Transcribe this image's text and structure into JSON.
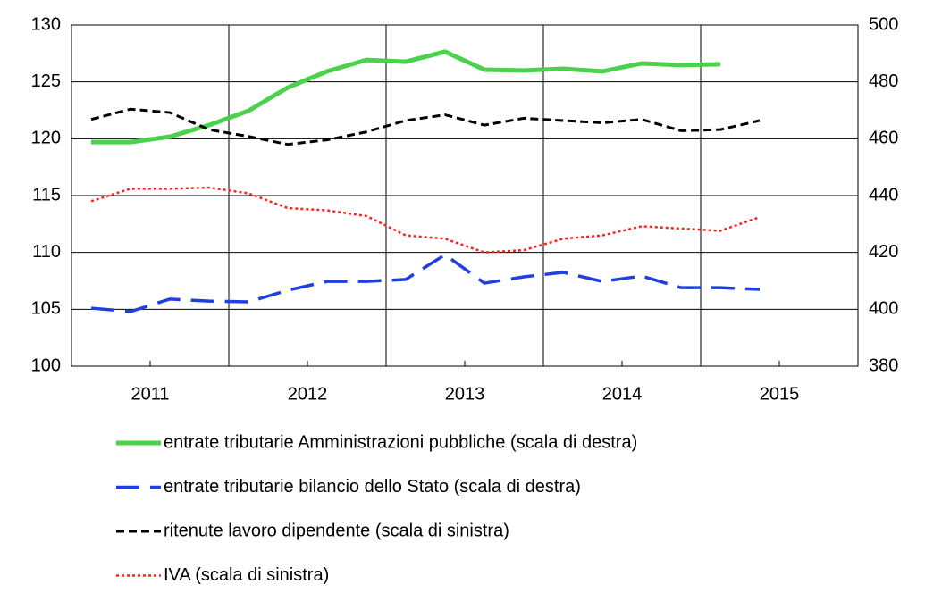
{
  "chart_data": {
    "type": "line",
    "x": [
      2010.625,
      2010.875,
      2011.125,
      2011.375,
      2011.625,
      2011.875,
      2012.125,
      2012.375,
      2012.625,
      2012.875,
      2013.125,
      2013.375,
      2013.625,
      2013.875,
      2014.125,
      2014.375,
      2014.625,
      2014.875
    ],
    "xlim": [
      2010.5,
      2015.5
    ],
    "xticks": [
      2011,
      2012,
      2013,
      2014,
      2015
    ],
    "ylim": [
      100,
      130
    ],
    "yticks": [
      100,
      105,
      110,
      115,
      120,
      125,
      130
    ],
    "y2lim": [
      380,
      500
    ],
    "y2ticks": [
      380,
      400,
      420,
      440,
      460,
      480,
      500
    ],
    "grid": true,
    "series": [
      {
        "name": "entrate tributarie Amministrazioni pubbliche (scala di destra)",
        "color": "#4cd14c",
        "axis": "y2",
        "line_style": "solid",
        "values": [
          458.8,
          458.8,
          460.7,
          464.8,
          469.8,
          478.0,
          483.7,
          487.7,
          487.1,
          490.6,
          484.3,
          484.0,
          484.6,
          483.7,
          486.5,
          485.9,
          486.2,
          null
        ]
      },
      {
        "name": "entrate tributarie bilancio dello Stato (scala di destra)",
        "color": "#1f3fe0",
        "axis": "y2",
        "line_style": "longdash",
        "values": [
          400.4,
          399.2,
          403.6,
          402.9,
          402.6,
          406.7,
          409.8,
          409.8,
          410.5,
          419.2,
          409.2,
          411.4,
          413.0,
          409.8,
          411.7,
          407.6,
          407.6,
          407.0
        ]
      },
      {
        "name": "ritenute lavoro dipendente (scala di sinistra)",
        "color": "#000000",
        "line_style": "dashed",
        "values": [
          121.7,
          122.6,
          122.3,
          120.8,
          120.2,
          119.5,
          119.9,
          120.6,
          121.6,
          122.1,
          121.2,
          121.8,
          121.6,
          121.4,
          121.7,
          120.7,
          120.8,
          121.6
        ]
      },
      {
        "name": "IVA (scala di sinistra)",
        "color": "#ff2020",
        "line_style": "dotted",
        "values": [
          114.5,
          115.6,
          115.6,
          115.7,
          115.2,
          113.9,
          113.7,
          113.2,
          111.5,
          111.2,
          110.0,
          110.2,
          111.2,
          111.5,
          112.3,
          112.1,
          111.9,
          113.1
        ]
      }
    ]
  }
}
